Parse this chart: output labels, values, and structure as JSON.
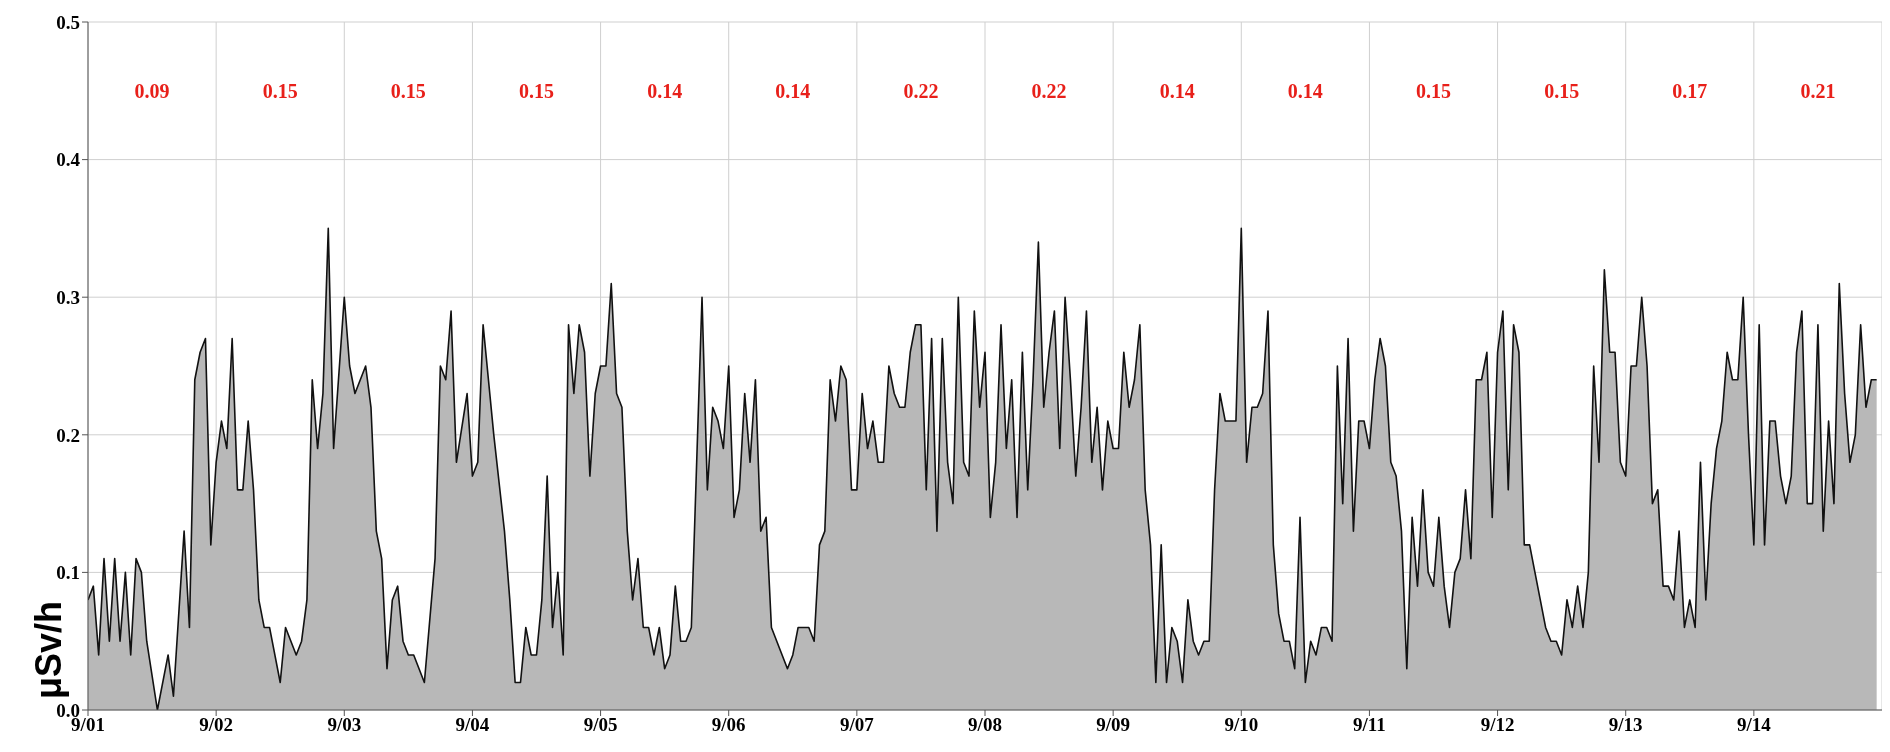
{
  "chart_data": {
    "type": "area",
    "ylabel": "μSv/h",
    "xlim": [
      "--09-01T00:00",
      "--09-15T00:00"
    ],
    "ylim": [
      0,
      0.5
    ],
    "xticks": [
      {
        "value": "--09-01",
        "label": "9/01"
      },
      {
        "value": "--09-02",
        "label": "9/02"
      },
      {
        "value": "--09-03",
        "label": "9/03"
      },
      {
        "value": "--09-04",
        "label": "9/04"
      },
      {
        "value": "--09-05",
        "label": "9/05"
      },
      {
        "value": "--09-06",
        "label": "9/06"
      },
      {
        "value": "--09-07",
        "label": "9/07"
      },
      {
        "value": "--09-08",
        "label": "9/08"
      },
      {
        "value": "--09-09",
        "label": "9/09"
      },
      {
        "value": "--09-10",
        "label": "9/10"
      },
      {
        "value": "--09-11",
        "label": "9/11"
      },
      {
        "value": "--09-12",
        "label": "9/12"
      },
      {
        "value": "--09-13",
        "label": "9/13"
      },
      {
        "value": "--09-14",
        "label": "9/14"
      }
    ],
    "yticks": [
      {
        "value": 0,
        "label": "0.0"
      },
      {
        "value": 0.1,
        "label": "0.1"
      },
      {
        "value": 0.2,
        "label": "0.2"
      },
      {
        "value": 0.3,
        "label": "0.3"
      },
      {
        "value": 0.4,
        "label": "0.4"
      },
      {
        "value": 0.5,
        "label": "0.5"
      }
    ],
    "grid": true,
    "legend": false,
    "annotations": [
      "0.09",
      "0.15",
      "0.15",
      "0.15",
      "0.14",
      "0.14",
      "0.22",
      "0.22",
      "0.14",
      "0.14",
      "0.15",
      "0.15",
      "0.17",
      "0.21"
    ],
    "series": [
      {
        "color": "#b8b8b8",
        "x": [
          "--09-01T00:00",
          "--09-01T01:00",
          "--09-01T02:00",
          "--09-01T03:00",
          "--09-01T04:00",
          "--09-01T05:00",
          "--09-01T06:00",
          "--09-01T07:00",
          "--09-01T08:00",
          "--09-01T09:00",
          "--09-01T10:00",
          "--09-01T11:00",
          "--09-01T13:00",
          "--09-01T15:00",
          "--09-01T16:00",
          "--09-01T18:00",
          "--09-01T19:00",
          "--09-01T20:00",
          "--09-01T21:00",
          "--09-01T22:00",
          "--09-01T23:00",
          "--09-02T00:00",
          "--09-02T01:00",
          "--09-02T02:00",
          "--09-02T03:00",
          "--09-02T04:00",
          "--09-02T05:00",
          "--09-02T06:00",
          "--09-02T07:00",
          "--09-02T08:00",
          "--09-02T09:00",
          "--09-02T10:00",
          "--09-02T12:00",
          "--09-02T13:00",
          "--09-02T15:00",
          "--09-02T16:00",
          "--09-02T17:00",
          "--09-02T18:00",
          "--09-02T19:00",
          "--09-02T20:00",
          "--09-02T21:00",
          "--09-02T22:00",
          "--09-03T00:00",
          "--09-03T01:00",
          "--09-03T02:00",
          "--09-03T04:00",
          "--09-03T05:00",
          "--09-03T06:00",
          "--09-03T07:00",
          "--09-03T08:00",
          "--09-03T09:00",
          "--09-03T10:00",
          "--09-03T11:00",
          "--09-03T12:00",
          "--09-03T13:00",
          "--09-03T15:00",
          "--09-03T17:00",
          "--09-03T18:00",
          "--09-03T19:00",
          "--09-03T20:00",
          "--09-03T21:00",
          "--09-03T23:00",
          "--09-04T00:00",
          "--09-04T01:00",
          "--09-04T02:00",
          "--09-04T04:00",
          "--09-04T06:00",
          "--09-04T07:00",
          "--09-04T08:00",
          "--09-04T09:00",
          "--09-04T10:00",
          "--09-04T11:00",
          "--09-04T12:00",
          "--09-04T13:00",
          "--09-04T14:00",
          "--09-04T15:00",
          "--09-04T16:00",
          "--09-04T17:00",
          "--09-04T18:00",
          "--09-04T19:00",
          "--09-04T20:00",
          "--09-04T21:00",
          "--09-04T22:00",
          "--09-04T23:00",
          "--09-05T00:00",
          "--09-05T01:00",
          "--09-05T02:00",
          "--09-05T03:00",
          "--09-05T04:00",
          "--09-05T05:00",
          "--09-05T06:00",
          "--09-05T07:00",
          "--09-05T08:00",
          "--09-05T09:00",
          "--09-05T10:00",
          "--09-05T11:00",
          "--09-05T12:00",
          "--09-05T13:00",
          "--09-05T14:00",
          "--09-05T15:00",
          "--09-05T16:00",
          "--09-05T17:00",
          "--09-05T19:00",
          "--09-05T20:00",
          "--09-05T21:00",
          "--09-05T22:00",
          "--09-05T23:00",
          "--09-06T00:00",
          "--09-06T01:00",
          "--09-06T02:00",
          "--09-06T03:00",
          "--09-06T04:00",
          "--09-06T05:00",
          "--09-06T06:00",
          "--09-06T07:00",
          "--09-06T08:00",
          "--09-06T11:00",
          "--09-06T12:00",
          "--09-06T13:00",
          "--09-06T15:00",
          "--09-06T16:00",
          "--09-06T17:00",
          "--09-06T18:00",
          "--09-06T19:00",
          "--09-06T20:00",
          "--09-06T21:00",
          "--09-06T22:00",
          "--09-06T23:00",
          "--09-07T00:00",
          "--09-07T01:00",
          "--09-07T02:00",
          "--09-07T03:00",
          "--09-07T04:00",
          "--09-07T05:00",
          "--09-07T06:00",
          "--09-07T07:00",
          "--09-07T08:00",
          "--09-07T09:00",
          "--09-07T10:00",
          "--09-07T11:00",
          "--09-07T12:00",
          "--09-07T13:00",
          "--09-07T14:00",
          "--09-07T15:00",
          "--09-07T16:00",
          "--09-07T17:00",
          "--09-07T18:00",
          "--09-07T19:00",
          "--09-07T20:00",
          "--09-07T21:00",
          "--09-07T22:00",
          "--09-07T23:00",
          "--09-08T00:00",
          "--09-08T01:00",
          "--09-08T02:00",
          "--09-08T03:00",
          "--09-08T04:00",
          "--09-08T05:00",
          "--09-08T06:00",
          "--09-08T07:00",
          "--09-08T08:00",
          "--09-08T09:00",
          "--09-08T10:00",
          "--09-08T11:00",
          "--09-08T12:00",
          "--09-08T13:00",
          "--09-08T14:00",
          "--09-08T15:00",
          "--09-08T16:00",
          "--09-08T17:00",
          "--09-08T18:00",
          "--09-08T19:00",
          "--09-08T20:00",
          "--09-08T21:00",
          "--09-08T22:00",
          "--09-08T23:00",
          "--09-09T00:00",
          "--09-09T01:00",
          "--09-09T02:00",
          "--09-09T03:00",
          "--09-09T04:00",
          "--09-09T05:00",
          "--09-09T06:00",
          "--09-09T07:00",
          "--09-09T08:00",
          "--09-09T09:00",
          "--09-09T10:00",
          "--09-09T11:00",
          "--09-09T12:00",
          "--09-09T13:00",
          "--09-09T14:00",
          "--09-09T15:00",
          "--09-09T16:00",
          "--09-09T17:00",
          "--09-09T18:00",
          "--09-09T19:00",
          "--09-09T20:00",
          "--09-09T21:00",
          "--09-09T23:00",
          "--09-10T00:00",
          "--09-10T01:00",
          "--09-10T02:00",
          "--09-10T03:00",
          "--09-10T04:00",
          "--09-10T05:00",
          "--09-10T06:00",
          "--09-10T07:00",
          "--09-10T08:00",
          "--09-10T09:00",
          "--09-10T10:00",
          "--09-10T11:00",
          "--09-10T12:00",
          "--09-10T13:00",
          "--09-10T14:00",
          "--09-10T15:00",
          "--09-10T16:00",
          "--09-10T17:00",
          "--09-10T18:00",
          "--09-10T19:00",
          "--09-10T20:00",
          "--09-10T21:00",
          "--09-10T22:00",
          "--09-10T23:00",
          "--09-11T00:00",
          "--09-11T01:00",
          "--09-11T02:00",
          "--09-11T03:00",
          "--09-11T04:00",
          "--09-11T05:00",
          "--09-11T06:00",
          "--09-11T07:00",
          "--09-11T08:00",
          "--09-11T09:00",
          "--09-11T10:00",
          "--09-11T11:00",
          "--09-11T12:00",
          "--09-11T13:00",
          "--09-11T14:00",
          "--09-11T15:00",
          "--09-11T16:00",
          "--09-11T17:00",
          "--09-11T18:00",
          "--09-11T19:00",
          "--09-11T20:00",
          "--09-11T21:00",
          "--09-11T22:00",
          "--09-11T23:00",
          "--09-12T00:00",
          "--09-12T01:00",
          "--09-12T02:00",
          "--09-12T03:00",
          "--09-12T04:00",
          "--09-12T05:00",
          "--09-12T06:00",
          "--09-12T07:00",
          "--09-12T08:00",
          "--09-12T09:00",
          "--09-12T10:00",
          "--09-12T11:00",
          "--09-12T12:00",
          "--09-12T13:00",
          "--09-12T14:00",
          "--09-12T15:00",
          "--09-12T16:00",
          "--09-12T17:00",
          "--09-12T18:00",
          "--09-12T19:00",
          "--09-12T20:00",
          "--09-12T21:00",
          "--09-12T22:00",
          "--09-12T23:00",
          "--09-13T00:00",
          "--09-13T01:00",
          "--09-13T02:00",
          "--09-13T03:00",
          "--09-13T04:00",
          "--09-13T05:00",
          "--09-13T06:00",
          "--09-13T07:00",
          "--09-13T08:00",
          "--09-13T09:00",
          "--09-13T10:00",
          "--09-13T11:00",
          "--09-13T12:00",
          "--09-13T13:00",
          "--09-13T14:00",
          "--09-13T15:00",
          "--09-13T16:00",
          "--09-13T17:00",
          "--09-13T18:00",
          "--09-13T19:00",
          "--09-13T20:00",
          "--09-13T21:00",
          "--09-13T22:00",
          "--09-13T23:00",
          "--09-14T00:00",
          "--09-14T01:00",
          "--09-14T02:00",
          "--09-14T03:00",
          "--09-14T04:00",
          "--09-14T05:00",
          "--09-14T06:00",
          "--09-14T07:00",
          "--09-14T08:00",
          "--09-14T09:00",
          "--09-14T10:00",
          "--09-14T11:00",
          "--09-14T12:00",
          "--09-14T13:00",
          "--09-14T14:00",
          "--09-14T15:00",
          "--09-14T16:00",
          "--09-14T17:00",
          "--09-14T18:00",
          "--09-14T19:00",
          "--09-14T20:00",
          "--09-14T21:00",
          "--09-14T22:00",
          "--09-14T23:00"
        ],
        "values": [
          0.08,
          0.09,
          0.04,
          0.11,
          0.05,
          0.11,
          0.05,
          0.1,
          0.04,
          0.11,
          0.1,
          0.05,
          0.0,
          0.04,
          0.01,
          0.13,
          0.06,
          0.24,
          0.26,
          0.27,
          0.12,
          0.18,
          0.21,
          0.19,
          0.27,
          0.16,
          0.16,
          0.21,
          0.16,
          0.08,
          0.06,
          0.06,
          0.02,
          0.06,
          0.04,
          0.05,
          0.08,
          0.24,
          0.19,
          0.23,
          0.35,
          0.19,
          0.3,
          0.25,
          0.23,
          0.25,
          0.22,
          0.13,
          0.11,
          0.03,
          0.08,
          0.09,
          0.05,
          0.04,
          0.04,
          0.02,
          0.11,
          0.25,
          0.24,
          0.29,
          0.18,
          0.23,
          0.17,
          0.18,
          0.28,
          0.2,
          0.13,
          0.08,
          0.02,
          0.02,
          0.06,
          0.04,
          0.04,
          0.08,
          0.17,
          0.06,
          0.1,
          0.04,
          0.28,
          0.23,
          0.28,
          0.26,
          0.17,
          0.23,
          0.25,
          0.25,
          0.31,
          0.23,
          0.22,
          0.13,
          0.08,
          0.11,
          0.06,
          0.06,
          0.04,
          0.06,
          0.03,
          0.04,
          0.09,
          0.05,
          0.05,
          0.06,
          0.3,
          0.16,
          0.22,
          0.21,
          0.19,
          0.25,
          0.14,
          0.16,
          0.23,
          0.18,
          0.24,
          0.13,
          0.14,
          0.06,
          0.03,
          0.04,
          0.06,
          0.06,
          0.05,
          0.12,
          0.13,
          0.24,
          0.21,
          0.25,
          0.24,
          0.16,
          0.16,
          0.23,
          0.19,
          0.21,
          0.18,
          0.18,
          0.25,
          0.23,
          0.22,
          0.22,
          0.26,
          0.28,
          0.28,
          0.16,
          0.27,
          0.13,
          0.27,
          0.18,
          0.15,
          0.3,
          0.18,
          0.17,
          0.29,
          0.22,
          0.26,
          0.14,
          0.18,
          0.28,
          0.19,
          0.24,
          0.14,
          0.26,
          0.16,
          0.24,
          0.34,
          0.22,
          0.26,
          0.29,
          0.19,
          0.3,
          0.24,
          0.17,
          0.22,
          0.29,
          0.18,
          0.22,
          0.16,
          0.21,
          0.19,
          0.19,
          0.26,
          0.22,
          0.24,
          0.28,
          0.16,
          0.12,
          0.02,
          0.12,
          0.02,
          0.06,
          0.05,
          0.02,
          0.08,
          0.05,
          0.04,
          0.05,
          0.05,
          0.16,
          0.23,
          0.21,
          0.21,
          0.35,
          0.18,
          0.22,
          0.22,
          0.23,
          0.29,
          0.12,
          0.07,
          0.05,
          0.05,
          0.03,
          0.14,
          0.02,
          0.05,
          0.04,
          0.06,
          0.06,
          0.05,
          0.25,
          0.15,
          0.27,
          0.13,
          0.21,
          0.21,
          0.19,
          0.24,
          0.27,
          0.25,
          0.18,
          0.17,
          0.13,
          0.03,
          0.14,
          0.09,
          0.16,
          0.1,
          0.09,
          0.14,
          0.09,
          0.06,
          0.1,
          0.11,
          0.16,
          0.11,
          0.24,
          0.24,
          0.26,
          0.14,
          0.26,
          0.29,
          0.16,
          0.28,
          0.26,
          0.12,
          0.12,
          0.1,
          0.08,
          0.06,
          0.05,
          0.05,
          0.04,
          0.08,
          0.06,
          0.09,
          0.06,
          0.1,
          0.25,
          0.18,
          0.32,
          0.26,
          0.26,
          0.18,
          0.17,
          0.25,
          0.25,
          0.3,
          0.25,
          0.15,
          0.16,
          0.09,
          0.09,
          0.08,
          0.13,
          0.06,
          0.08,
          0.06,
          0.18,
          0.08,
          0.15,
          0.19,
          0.21,
          0.26,
          0.24,
          0.24,
          0.3,
          0.2,
          0.12,
          0.28,
          0.12,
          0.21,
          0.21,
          0.17,
          0.15,
          0.17,
          0.26,
          0.29,
          0.15,
          0.15,
          0.28,
          0.13,
          0.21,
          0.15,
          0.31,
          0.23,
          0.18,
          0.2,
          0.28,
          0.22,
          0.24,
          0.24
        ]
      }
    ]
  }
}
